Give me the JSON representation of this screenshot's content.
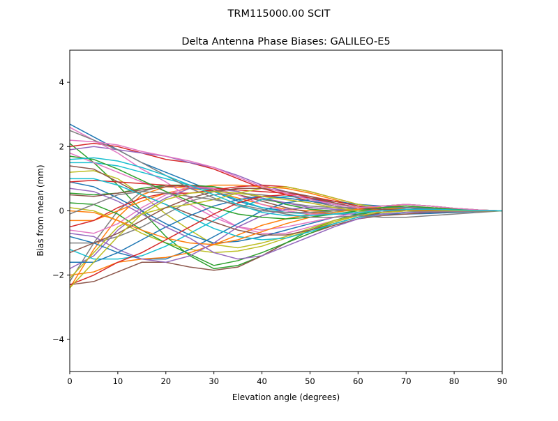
{
  "chart_data": {
    "type": "line",
    "suptitle": "TRM115000.00    SCIT",
    "title": "Delta Antenna Phase Biases: GALILEO-E5",
    "xlabel": "Elevation angle (degrees)",
    "ylabel": "Bias from mean (mm)",
    "xlim": [
      0,
      90
    ],
    "ylim": [
      -5,
      5
    ],
    "xticks": [
      "0",
      "10",
      "20",
      "30",
      "40",
      "50",
      "60",
      "70",
      "80",
      "90"
    ],
    "yticks": [
      "4",
      "2",
      "0",
      "−2",
      "−4"
    ],
    "ytick_values": [
      4,
      2,
      0,
      -2,
      -4
    ],
    "xtick_values": [
      0,
      10,
      20,
      30,
      40,
      50,
      60,
      70,
      80,
      90
    ],
    "grid": false,
    "colors": [
      "#1f77b4",
      "#ff7f0e",
      "#2ca02c",
      "#d62728",
      "#9467bd",
      "#8c564b",
      "#e377c2",
      "#7f7f7f",
      "#bcbd22",
      "#17becf"
    ],
    "x": [
      0,
      5,
      10,
      15,
      20,
      25,
      30,
      35,
      40,
      45,
      50,
      55,
      60,
      65,
      70,
      75,
      80,
      85,
      90
    ],
    "series": [
      {
        "values": [
          2.7,
          2.3,
          1.9,
          1.5,
          1.2,
          0.9,
          0.6,
          0.3,
          0.1,
          0,
          -0.1,
          -0.1,
          -0.1,
          -0.1,
          -0.1,
          -0.08,
          -0.05,
          -0.02,
          0
        ]
      },
      {
        "values": [
          -2.4,
          -1.2,
          -0.2,
          0.5,
          0.75,
          0.7,
          0.6,
          0.4,
          0.2,
          0.05,
          0,
          0,
          0.1,
          0.15,
          0.15,
          0.1,
          0.05,
          0.02,
          0
        ]
      },
      {
        "values": [
          2.1,
          1.5,
          0.8,
          0,
          -0.8,
          -1.4,
          -1.8,
          -1.7,
          -1.4,
          -1,
          -0.6,
          -0.3,
          -0.1,
          0,
          0.05,
          0.05,
          0.02,
          0.01,
          0
        ]
      },
      {
        "values": [
          2.0,
          2.1,
          2.0,
          1.8,
          1.6,
          1.5,
          1.3,
          1.0,
          0.7,
          0.5,
          0.3,
          0.15,
          0.05,
          0.05,
          0.1,
          0.05,
          0.02,
          0.01,
          0
        ]
      },
      {
        "values": [
          1.9,
          2.0,
          1.9,
          1.8,
          1.7,
          1.5,
          1.35,
          1.1,
          0.8,
          0.6,
          0.4,
          0.2,
          0.1,
          0.15,
          0.2,
          0.15,
          0.08,
          0.03,
          0
        ]
      },
      {
        "values": [
          -2.3,
          -2.2,
          -1.9,
          -1.6,
          -1.6,
          -1.75,
          -1.85,
          -1.75,
          -1.4,
          -1.0,
          -0.7,
          -0.45,
          -0.25,
          -0.15,
          -0.1,
          -0.05,
          -0.03,
          -0.01,
          0
        ]
      },
      {
        "values": [
          2.6,
          2.2,
          1.8,
          1.3,
          0.9,
          0.4,
          -0.1,
          -0.5,
          -0.7,
          -0.7,
          -0.5,
          -0.3,
          -0.15,
          -0.05,
          0,
          0,
          0,
          0,
          0
        ]
      },
      {
        "values": [
          -2.2,
          -1.0,
          0,
          0.6,
          0.8,
          0.75,
          0.65,
          0.5,
          0.35,
          0.25,
          0.15,
          0.1,
          0.1,
          0.15,
          0.2,
          0.15,
          0.08,
          0.03,
          0
        ]
      },
      {
        "values": [
          1.2,
          1.25,
          1.0,
          0.5,
          -0.1,
          -0.6,
          -1.05,
          -1.15,
          -1.0,
          -0.8,
          -0.55,
          -0.3,
          -0.15,
          -0.05,
          0,
          0,
          0,
          0,
          0
        ]
      },
      {
        "values": [
          1.5,
          1.5,
          1.4,
          1.2,
          1.0,
          0.8,
          0.6,
          0.35,
          0.1,
          -0.05,
          -0.1,
          -0.05,
          0.05,
          0.15,
          0.2,
          0.15,
          0.08,
          0.03,
          0
        ]
      },
      {
        "values": [
          0.9,
          0.75,
          0.4,
          0,
          -0.4,
          -0.75,
          -1.0,
          -0.95,
          -0.8,
          -0.6,
          -0.4,
          -0.2,
          -0.05,
          0.05,
          0.1,
          0.08,
          0.05,
          0.02,
          0
        ]
      },
      {
        "values": [
          -0.3,
          -0.3,
          0,
          0.3,
          0.55,
          0.7,
          0.8,
          0.8,
          0.75,
          0.7,
          0.55,
          0.35,
          0.15,
          0.05,
          0,
          0,
          0,
          0,
          0
        ]
      },
      {
        "values": [
          0.55,
          0.5,
          0.55,
          0.7,
          0.8,
          0.8,
          0.75,
          0.6,
          0.4,
          0.2,
          0.05,
          0,
          0,
          0.05,
          0.1,
          0.08,
          0.05,
          0.02,
          0
        ]
      },
      {
        "values": [
          -0.5,
          -0.3,
          0.1,
          0.4,
          0.55,
          0.55,
          0.65,
          0.75,
          0.8,
          0.75,
          0.6,
          0.4,
          0.2,
          0.1,
          0.05,
          0.03,
          0.02,
          0.01,
          0
        ]
      },
      {
        "values": [
          -1.8,
          -1.4,
          -0.6,
          0,
          0.4,
          0.7,
          0.7,
          0.6,
          0.4,
          0.25,
          0.1,
          0.05,
          0.05,
          0.1,
          0.1,
          0.08,
          0.05,
          0.02,
          0
        ]
      },
      {
        "values": [
          0.5,
          0.45,
          0.55,
          0.65,
          0.75,
          0.8,
          0.7,
          0.5,
          0.3,
          0.1,
          -0.05,
          -0.1,
          -0.05,
          0.05,
          0.1,
          0.08,
          0.05,
          0.02,
          0
        ]
      },
      {
        "values": [
          1.8,
          1.5,
          1.2,
          0.9,
          0.6,
          0.2,
          -0.2,
          -0.5,
          -0.6,
          -0.5,
          -0.35,
          -0.2,
          -0.05,
          0.05,
          0.1,
          0.08,
          0.05,
          0.02,
          0
        ]
      },
      {
        "values": [
          -1.0,
          -1.0,
          -0.8,
          -0.5,
          -0.1,
          0.3,
          0.5,
          0.55,
          0.5,
          0.4,
          0.3,
          0.15,
          0.05,
          0,
          0,
          0,
          0,
          0,
          0
        ]
      },
      {
        "values": [
          0.1,
          0,
          -0.3,
          -0.7,
          -1.0,
          -1.2,
          -1.3,
          -1.25,
          -1.1,
          -0.85,
          -0.6,
          -0.35,
          -0.15,
          -0.05,
          0,
          0,
          0,
          0,
          0
        ]
      },
      {
        "values": [
          -1.2,
          -1.5,
          -1.5,
          -1.4,
          -1.1,
          -0.7,
          -0.3,
          0.1,
          0.35,
          0.45,
          0.4,
          0.3,
          0.15,
          0.1,
          0.05,
          0.03,
          0.02,
          0.01,
          0
        ]
      },
      {
        "values": [
          -0.8,
          -1.0,
          -1.3,
          -1.5,
          -1.5,
          -1.2,
          -0.8,
          -0.4,
          0,
          0.25,
          0.35,
          0.3,
          0.2,
          0.15,
          0.1,
          0.06,
          0.03,
          0.01,
          0
        ]
      },
      {
        "values": [
          -2.0,
          -1.9,
          -1.6,
          -1.5,
          -1.45,
          -1.3,
          -1.05,
          -0.75,
          -0.45,
          -0.25,
          -0.1,
          0,
          0.05,
          0.05,
          0.05,
          0.03,
          0.02,
          0.01,
          0
        ]
      },
      {
        "values": [
          0.25,
          0.2,
          -0.1,
          -0.6,
          -1.0,
          -1.35,
          -1.7,
          -1.55,
          -1.3,
          -1.0,
          -0.7,
          -0.4,
          -0.2,
          -0.1,
          -0.05,
          -0.03,
          -0.02,
          -0.01,
          0
        ]
      },
      {
        "values": [
          0.9,
          0.95,
          0.9,
          0.85,
          0.8,
          0.75,
          0.7,
          0.65,
          0.6,
          0.55,
          0.45,
          0.3,
          0.15,
          0.05,
          0,
          0,
          0,
          0,
          0
        ]
      },
      {
        "values": [
          -0.7,
          -0.8,
          -1.2,
          -1.5,
          -1.6,
          -1.4,
          -1.0,
          -0.5,
          -0.15,
          0.05,
          0.1,
          0.05,
          0,
          0,
          0,
          0,
          0,
          0,
          0
        ]
      },
      {
        "values": [
          1.4,
          1.3,
          0.9,
          0.5,
          0.2,
          -0.1,
          -0.35,
          -0.6,
          -0.75,
          -0.75,
          -0.6,
          -0.4,
          -0.2,
          -0.05,
          0.05,
          0.05,
          0.03,
          0.01,
          0
        ]
      },
      {
        "values": [
          -0.6,
          -0.7,
          -0.4,
          0.1,
          0.5,
          0.75,
          0.7,
          0.5,
          0.2,
          0,
          -0.1,
          -0.1,
          -0.05,
          0,
          0.05,
          0.05,
          0.03,
          0.01,
          0
        ]
      },
      {
        "values": [
          2.5,
          2.2,
          1.9,
          1.5,
          1.1,
          0.7,
          0.4,
          0.15,
          0,
          -0.05,
          -0.05,
          0,
          0.05,
          0.1,
          0.1,
          0.08,
          0.05,
          0.02,
          0
        ]
      },
      {
        "values": [
          -2.1,
          -1.3,
          -0.5,
          -0.1,
          0.1,
          0.2,
          0.35,
          0.55,
          0.7,
          0.75,
          0.6,
          0.4,
          0.2,
          0.1,
          0.05,
          0.03,
          0.02,
          0.01,
          0
        ]
      },
      {
        "values": [
          1.0,
          1.0,
          0.8,
          0.5,
          0.2,
          -0.2,
          -0.55,
          -0.8,
          -0.9,
          -0.85,
          -0.65,
          -0.4,
          -0.2,
          -0.1,
          -0.05,
          -0.03,
          -0.02,
          -0.01,
          0
        ]
      },
      {
        "values": [
          -1.6,
          -1.6,
          -1.3,
          -0.9,
          -0.5,
          -0.15,
          0.15,
          0.35,
          0.45,
          0.4,
          0.3,
          0.2,
          0.1,
          0.05,
          0.05,
          0.03,
          0.02,
          0.01,
          0
        ]
      },
      {
        "values": [
          0,
          -0.05,
          -0.3,
          -0.6,
          -0.85,
          -1.0,
          -1.05,
          -0.9,
          -0.65,
          -0.4,
          -0.2,
          -0.05,
          0.05,
          0.15,
          0.2,
          0.15,
          0.08,
          0.03,
          0
        ]
      },
      {
        "values": [
          1.7,
          1.6,
          1.3,
          0.95,
          0.6,
          0.3,
          0.1,
          -0.1,
          -0.2,
          -0.25,
          -0.2,
          -0.1,
          0,
          0.1,
          0.15,
          0.1,
          0.05,
          0.02,
          0
        ]
      },
      {
        "values": [
          -2.3,
          -2.0,
          -1.6,
          -1.3,
          -0.9,
          -0.5,
          -0.1,
          0.25,
          0.45,
          0.5,
          0.4,
          0.25,
          0.1,
          0.05,
          0.05,
          0.03,
          0.02,
          0.01,
          0
        ]
      },
      {
        "values": [
          0.7,
          0.6,
          0.3,
          -0.1,
          -0.5,
          -0.85,
          -1.3,
          -1.5,
          -1.4,
          -1.1,
          -0.8,
          -0.5,
          -0.25,
          -0.1,
          -0.05,
          -0.03,
          -0.02,
          -0.01,
          0
        ]
      },
      {
        "values": [
          -1.3,
          -1.0,
          -0.7,
          -0.3,
          0.1,
          0.4,
          0.6,
          0.7,
          0.7,
          0.6,
          0.45,
          0.25,
          0.1,
          0.05,
          0,
          0,
          0,
          0,
          0
        ]
      },
      {
        "values": [
          2.2,
          2.15,
          2.05,
          1.85,
          1.7,
          1.55,
          1.35,
          1.05,
          0.75,
          0.55,
          0.35,
          0.2,
          0.1,
          0.15,
          0.2,
          0.15,
          0.08,
          0.03,
          0
        ]
      },
      {
        "values": [
          -0.1,
          0.2,
          0.5,
          0.6,
          0.55,
          0.45,
          0.35,
          0.2,
          0.05,
          -0.1,
          -0.2,
          -0.2,
          -0.15,
          -0.2,
          -0.2,
          -0.15,
          -0.1,
          -0.05,
          0
        ]
      },
      {
        "values": [
          -2.4,
          -1.6,
          -0.8,
          -0.1,
          0.35,
          0.55,
          0.6,
          0.55,
          0.45,
          0.35,
          0.25,
          0.1,
          0,
          -0.05,
          0,
          0,
          0,
          0,
          0
        ]
      },
      {
        "values": [
          1.6,
          1.65,
          1.55,
          1.35,
          1.1,
          0.8,
          0.5,
          0.2,
          -0.05,
          -0.15,
          -0.15,
          -0.1,
          -0.05,
          0,
          0.05,
          0.05,
          0.03,
          0.01,
          0
        ]
      }
    ]
  }
}
